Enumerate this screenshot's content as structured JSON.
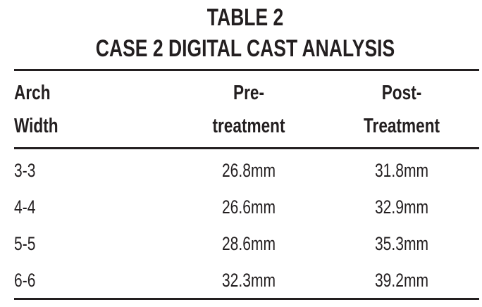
{
  "title": {
    "line1": "TABLE 2",
    "line2": "CASE 2 DIGITAL CAST ANALYSIS"
  },
  "table": {
    "header": [
      [
        "Arch",
        "Width"
      ],
      [
        "Pre-",
        "treatment"
      ],
      [
        "Post-",
        "Treatment"
      ]
    ],
    "rows": [
      [
        "3-3",
        "26.8mm",
        "31.8mm"
      ],
      [
        "4-4",
        "26.6mm",
        "32.9mm"
      ],
      [
        "5-5",
        "28.6mm",
        "35.3mm"
      ],
      [
        "6-6",
        "32.3mm",
        "39.2mm"
      ]
    ]
  }
}
